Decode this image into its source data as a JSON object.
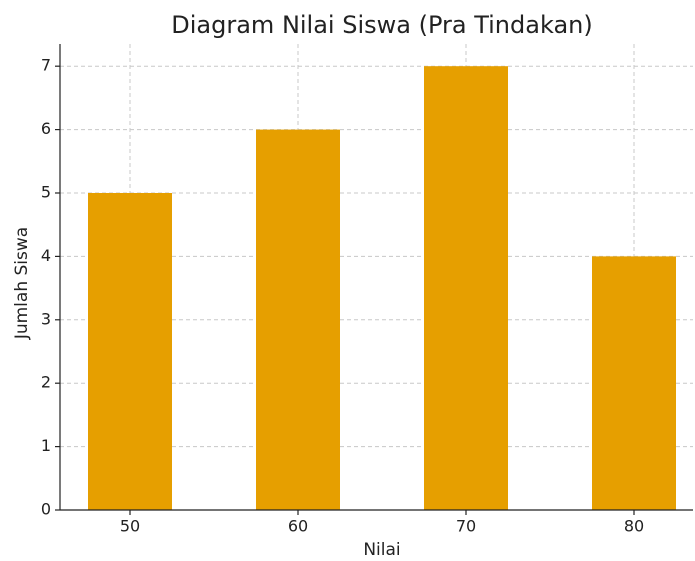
{
  "chart_data": {
    "type": "bar",
    "title": "Diagram Nilai Siswa (Pra Tindakan)",
    "xlabel": "Nilai",
    "ylabel": "Jumlah Siswa",
    "categories": [
      "50",
      "60",
      "70",
      "80"
    ],
    "values": [
      5,
      6,
      7,
      4
    ],
    "color": "#e69f00",
    "ylim": [
      0,
      7.35
    ],
    "yticks": [
      0,
      1,
      2,
      3,
      4,
      5,
      6,
      7
    ],
    "grid": true
  }
}
